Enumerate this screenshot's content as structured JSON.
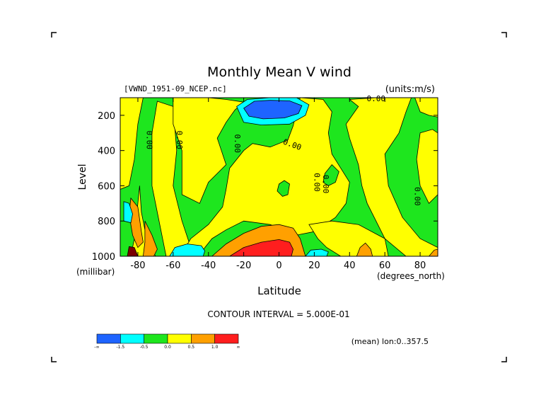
{
  "chart_data": {
    "type": "heatmap",
    "title": "Monthly Mean V wind",
    "dataset_label": "[VWND_1951-09_NCEP.nc]",
    "units_label": "(units:m/s)",
    "xlabel": "Latitude",
    "x_units_label": "(degrees_north)",
    "ylabel": "Level",
    "y_units_label": "(millibar)",
    "xlim": [
      -90,
      90
    ],
    "ylim": [
      1000,
      100
    ],
    "x_ticks": [
      -80,
      -60,
      -40,
      -20,
      0,
      20,
      40,
      60,
      80
    ],
    "x_tick_labels": [
      "-80",
      "-60",
      "-40",
      "-20",
      "0",
      "20",
      "40",
      "60",
      "80"
    ],
    "y_ticks": [
      200,
      400,
      600,
      800,
      1000
    ],
    "y_tick_labels": [
      "200",
      "400",
      "600",
      "800",
      "1000"
    ],
    "contour_interval_label": "CONTOUR INTERVAL = 5.000E-01",
    "mean_label": "(mean) lon:0..357.5",
    "contour_labels": [
      {
        "text": "0.00",
        "lat": -75,
        "level": 340,
        "rotation": 90
      },
      {
        "text": "0.00",
        "lat": -58,
        "level": 340,
        "rotation": 90
      },
      {
        "text": "0.00",
        "lat": -25,
        "level": 360,
        "rotation": 90
      },
      {
        "text": "0.00",
        "lat": 7,
        "level": 380,
        "rotation": 20
      },
      {
        "text": "0.00",
        "lat": 20,
        "level": 580,
        "rotation": 90
      },
      {
        "text": "0.00",
        "lat": 25,
        "level": 590,
        "rotation": 90
      },
      {
        "text": "0.00",
        "lat": 55,
        "level": 120,
        "rotation": 0
      },
      {
        "text": "0.00",
        "lat": 77,
        "level": 660,
        "rotation": 90
      }
    ],
    "colorbar": {
      "colors": [
        "#1e64ff",
        "#00ffff",
        "#1ee61e",
        "#ffff00",
        "#ffa000",
        "#ff1e1e"
      ],
      "tick_labels": [
        "-∞",
        "-1.5",
        "-0.5",
        "0.0",
        "0.5",
        "1.0",
        "∞"
      ]
    },
    "palette": {
      "blue": "#1e64ff",
      "cyan": "#00ffff",
      "green": "#1ee61e",
      "yellow": "#ffff00",
      "orange": "#ffa000",
      "red": "#ff1e1e",
      "dark": "#7a0000"
    },
    "regions": [
      {
        "color": "green",
        "points": [
          [
            -90,
            100
          ],
          [
            90,
            100
          ],
          [
            90,
            1000
          ],
          [
            -90,
            1000
          ]
        ]
      },
      {
        "color": "yellow",
        "points": [
          [
            -90,
            100
          ],
          [
            -77,
            100
          ],
          [
            -80,
            250
          ],
          [
            -82,
            450
          ],
          [
            -85,
            600
          ],
          [
            -90,
            620
          ]
        ]
      },
      {
        "color": "yellow",
        "points": [
          [
            -79,
            600
          ],
          [
            -78,
            750
          ],
          [
            -75,
            900
          ],
          [
            -70,
            1000
          ],
          [
            -84,
            1000
          ],
          [
            -82,
            900
          ]
        ]
      },
      {
        "color": "yellow",
        "points": [
          [
            -69,
            120
          ],
          [
            -60,
            150
          ],
          [
            -58,
            400
          ],
          [
            -60,
            600
          ],
          [
            -55,
            800
          ],
          [
            -50,
            950
          ],
          [
            -58,
            1000
          ],
          [
            -64,
            1000
          ],
          [
            -66,
            900
          ],
          [
            -72,
            600
          ],
          [
            -72,
            300
          ]
        ]
      },
      {
        "color": "yellow",
        "points": [
          [
            -60,
            100
          ],
          [
            -40,
            100
          ],
          [
            -30,
            110
          ],
          [
            -20,
            125
          ],
          [
            -25,
            170
          ],
          [
            -30,
            240
          ],
          [
            -35,
            330
          ],
          [
            -30,
            480
          ],
          [
            -40,
            580
          ],
          [
            -45,
            700
          ],
          [
            -55,
            650
          ],
          [
            -55,
            400
          ],
          [
            -60,
            250
          ]
        ]
      },
      {
        "color": "yellow",
        "points": [
          [
            12,
            100
          ],
          [
            25,
            110
          ],
          [
            30,
            180
          ],
          [
            28,
            300
          ],
          [
            30,
            420
          ],
          [
            35,
            500
          ],
          [
            40,
            580
          ],
          [
            38,
            700
          ],
          [
            32,
            780
          ],
          [
            20,
            860
          ],
          [
            10,
            880
          ],
          [
            -5,
            820
          ],
          [
            -20,
            800
          ],
          [
            -30,
            850
          ],
          [
            -38,
            900
          ],
          [
            -42,
            950
          ],
          [
            -45,
            1000
          ],
          [
            -56,
            1000
          ],
          [
            -50,
            900
          ],
          [
            -40,
            820
          ],
          [
            -32,
            720
          ],
          [
            -30,
            620
          ],
          [
            -28,
            500
          ],
          [
            -20,
            400
          ],
          [
            -15,
            360
          ],
          [
            -5,
            380
          ],
          [
            5,
            340
          ],
          [
            8,
            260
          ],
          [
            10,
            180
          ]
        ]
      },
      {
        "color": "yellow",
        "points": [
          [
            17,
            820
          ],
          [
            22,
            900
          ],
          [
            27,
            950
          ],
          [
            35,
            1000
          ],
          [
            62,
            1000
          ],
          [
            60,
            900
          ],
          [
            55,
            800
          ],
          [
            50,
            700
          ],
          [
            47,
            600
          ],
          [
            45,
            480
          ],
          [
            40,
            330
          ],
          [
            38,
            250
          ],
          [
            45,
            150
          ],
          [
            40,
            110
          ],
          [
            55,
            100
          ],
          [
            75,
            100
          ],
          [
            72,
            180
          ],
          [
            68,
            300
          ],
          [
            60,
            420
          ],
          [
            62,
            600
          ],
          [
            70,
            780
          ],
          [
            80,
            900
          ],
          [
            90,
            950
          ],
          [
            90,
            1000
          ],
          [
            72,
            1000
          ],
          [
            60,
            900
          ],
          [
            45,
            820
          ],
          [
            30,
            800
          ]
        ]
      },
      {
        "color": "yellow",
        "points": [
          [
            77,
            100
          ],
          [
            90,
            100
          ],
          [
            90,
            210
          ],
          [
            85,
            200
          ],
          [
            80,
            180
          ]
        ]
      },
      {
        "color": "yellow",
        "points": [
          [
            80,
            300
          ],
          [
            87,
            280
          ],
          [
            90,
            300
          ],
          [
            90,
            650
          ],
          [
            85,
            700
          ],
          [
            80,
            600
          ],
          [
            78,
            450
          ]
        ]
      },
      {
        "color": "green",
        "points": [
          [
            0,
            590
          ],
          [
            3,
            570
          ],
          [
            6,
            590
          ],
          [
            5,
            650
          ],
          [
            2,
            660
          ],
          [
            -1,
            630
          ]
        ]
      },
      {
        "color": "green",
        "points": [
          [
            26,
            530
          ],
          [
            30,
            480
          ],
          [
            34,
            520
          ],
          [
            32,
            580
          ],
          [
            28,
            600
          ],
          [
            25,
            580
          ]
        ]
      },
      {
        "color": "orange",
        "points": [
          [
            -84,
            670
          ],
          [
            -80,
            720
          ],
          [
            -78,
            860
          ],
          [
            -77,
            920
          ],
          [
            -80,
            950
          ],
          [
            -83,
            880
          ],
          [
            -85,
            760
          ]
        ]
      },
      {
        "color": "orange",
        "points": [
          [
            -76,
            800
          ],
          [
            -72,
            880
          ],
          [
            -69,
            960
          ],
          [
            -71,
            1000
          ],
          [
            -77,
            1000
          ],
          [
            -76,
            920
          ]
        ]
      },
      {
        "color": "orange",
        "points": [
          [
            -38,
            1000
          ],
          [
            -30,
            930
          ],
          [
            -20,
            870
          ],
          [
            -10,
            830
          ],
          [
            0,
            820
          ],
          [
            8,
            840
          ],
          [
            12,
            900
          ],
          [
            15,
            1000
          ]
        ]
      },
      {
        "color": "orange",
        "points": [
          [
            44,
            1000
          ],
          [
            46,
            950
          ],
          [
            49,
            925
          ],
          [
            52,
            960
          ],
          [
            53,
            1000
          ]
        ]
      },
      {
        "color": "orange",
        "points": [
          [
            85,
            1000
          ],
          [
            88,
            965
          ],
          [
            90,
            960
          ],
          [
            90,
            1000
          ]
        ]
      },
      {
        "color": "red",
        "points": [
          [
            -28,
            1000
          ],
          [
            -20,
            950
          ],
          [
            -10,
            920
          ],
          [
            0,
            905
          ],
          [
            6,
            920
          ],
          [
            8,
            960
          ],
          [
            7,
            1000
          ]
        ]
      },
      {
        "color": "dark",
        "points": [
          [
            -85,
            945
          ],
          [
            -82,
            950
          ],
          [
            -80,
            1000
          ],
          [
            -86,
            1000
          ]
        ]
      },
      {
        "color": "cyan",
        "points": [
          [
            -62,
            1000
          ],
          [
            -59,
            950
          ],
          [
            -52,
            930
          ],
          [
            -44,
            940
          ],
          [
            -42,
            970
          ],
          [
            -43,
            1000
          ]
        ]
      },
      {
        "color": "cyan",
        "points": [
          [
            15,
            1000
          ],
          [
            18,
            965
          ],
          [
            24,
            960
          ],
          [
            28,
            975
          ],
          [
            27,
            1000
          ]
        ]
      },
      {
        "color": "cyan",
        "points": [
          [
            -88,
            690
          ],
          [
            -85,
            700
          ],
          [
            -83,
            760
          ],
          [
            -84,
            810
          ],
          [
            -88,
            800
          ]
        ]
      },
      {
        "color": "cyan",
        "points": [
          [
            -24,
            150
          ],
          [
            -18,
            110
          ],
          [
            -5,
            100
          ],
          [
            10,
            100
          ],
          [
            17,
            140
          ],
          [
            15,
            200
          ],
          [
            6,
            250
          ],
          [
            -10,
            255
          ],
          [
            -20,
            240
          ]
        ]
      },
      {
        "color": "blue",
        "points": [
          [
            -20,
            160
          ],
          [
            -14,
            120
          ],
          [
            -5,
            115
          ],
          [
            6,
            118
          ],
          [
            13,
            145
          ],
          [
            11,
            190
          ],
          [
            3,
            215
          ],
          [
            -9,
            220
          ],
          [
            -17,
            205
          ]
        ]
      }
    ]
  }
}
